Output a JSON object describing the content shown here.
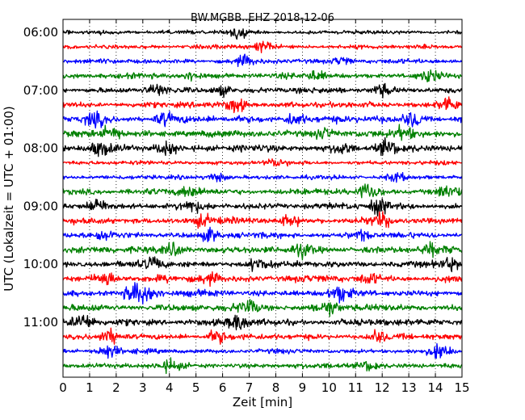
{
  "chart_data": {
    "type": "line",
    "title": "BW.MGBB..EHZ 2018-12-06",
    "xlabel": "Zeit  [min]",
    "ylabel": "UTC (Lokalzeit = UTC + 01:00)",
    "xlim": [
      0,
      15
    ],
    "x_ticks": [
      "0",
      "1",
      "2",
      "3",
      "4",
      "5",
      "6",
      "7",
      "8",
      "9",
      "10",
      "11",
      "12",
      "13",
      "14",
      "15"
    ],
    "y_ticks": [
      "06:00",
      "07:00",
      "08:00",
      "09:00",
      "10:00",
      "11:00"
    ],
    "trace_start": "06:00",
    "trace_interval_min": 15,
    "trace_count": 24,
    "grid": "vertical dotted",
    "series_colors": [
      "#000000",
      "#ff0000",
      "#0000ff",
      "#008000"
    ],
    "traces": [
      {
        "start": "06:00",
        "color": "#000000",
        "amplitude": 0.8,
        "events": [
          {
            "t": 6.6,
            "a": 1.8
          }
        ]
      },
      {
        "start": "06:15",
        "color": "#ff0000",
        "amplitude": 0.8,
        "events": [
          {
            "t": 7.5,
            "a": 1.6
          }
        ]
      },
      {
        "start": "06:30",
        "color": "#0000ff",
        "amplitude": 0.9,
        "events": [
          {
            "t": 6.8,
            "a": 1.5
          },
          {
            "t": 10.5,
            "a": 1.5
          }
        ]
      },
      {
        "start": "06:45",
        "color": "#008000",
        "amplitude": 1.0,
        "events": [
          {
            "t": 4.8,
            "a": 1.5
          },
          {
            "t": 9.5,
            "a": 1.6
          },
          {
            "t": 13.8,
            "a": 1.8
          }
        ]
      },
      {
        "start": "07:00",
        "color": "#000000",
        "amplitude": 1.1,
        "events": [
          {
            "t": 3.5,
            "a": 1.6
          },
          {
            "t": 6.0,
            "a": 1.6
          },
          {
            "t": 12.0,
            "a": 1.9
          }
        ]
      },
      {
        "start": "07:15",
        "color": "#ff0000",
        "amplitude": 1.1,
        "events": [
          {
            "t": 6.5,
            "a": 2.6
          },
          {
            "t": 14.5,
            "a": 2.8
          }
        ]
      },
      {
        "start": "07:30",
        "color": "#0000ff",
        "amplitude": 1.3,
        "events": [
          {
            "t": 1.2,
            "a": 2.1
          },
          {
            "t": 3.8,
            "a": 1.8
          },
          {
            "t": 8.7,
            "a": 2.2
          },
          {
            "t": 13.2,
            "a": 2.5
          }
        ]
      },
      {
        "start": "07:45",
        "color": "#008000",
        "amplitude": 1.3,
        "events": [
          {
            "t": 1.8,
            "a": 2.4
          },
          {
            "t": 9.8,
            "a": 2.2
          },
          {
            "t": 12.8,
            "a": 2.0
          }
        ]
      },
      {
        "start": "08:00",
        "color": "#000000",
        "amplitude": 1.3,
        "events": [
          {
            "t": 1.4,
            "a": 2.0
          },
          {
            "t": 3.9,
            "a": 2.4
          },
          {
            "t": 10.5,
            "a": 2.2
          },
          {
            "t": 12.2,
            "a": 2.2
          }
        ]
      },
      {
        "start": "08:15",
        "color": "#ff0000",
        "amplitude": 0.8,
        "events": [
          {
            "t": 8.0,
            "a": 1.2
          }
        ]
      },
      {
        "start": "08:30",
        "color": "#0000ff",
        "amplitude": 0.8,
        "events": [
          {
            "t": 5.8,
            "a": 1.5
          },
          {
            "t": 12.5,
            "a": 1.6
          }
        ]
      },
      {
        "start": "08:45",
        "color": "#008000",
        "amplitude": 1.2,
        "events": [
          {
            "t": 4.8,
            "a": 1.8
          },
          {
            "t": 11.5,
            "a": 2.6
          },
          {
            "t": 14.5,
            "a": 2.2
          }
        ]
      },
      {
        "start": "09:00",
        "color": "#000000",
        "amplitude": 1.2,
        "events": [
          {
            "t": 1.3,
            "a": 2.4
          },
          {
            "t": 4.8,
            "a": 1.6
          },
          {
            "t": 11.9,
            "a": 2.5
          }
        ]
      },
      {
        "start": "09:15",
        "color": "#ff0000",
        "amplitude": 1.2,
        "events": [
          {
            "t": 5.2,
            "a": 1.8
          },
          {
            "t": 8.5,
            "a": 1.8
          },
          {
            "t": 12.0,
            "a": 1.8
          }
        ]
      },
      {
        "start": "09:30",
        "color": "#0000ff",
        "amplitude": 1.1,
        "events": [
          {
            "t": 1.5,
            "a": 1.7
          },
          {
            "t": 5.5,
            "a": 1.8
          },
          {
            "t": 11.2,
            "a": 1.6
          }
        ]
      },
      {
        "start": "09:45",
        "color": "#008000",
        "amplitude": 1.3,
        "events": [
          {
            "t": 4.2,
            "a": 1.9
          },
          {
            "t": 9.0,
            "a": 1.8
          },
          {
            "t": 13.8,
            "a": 1.8
          }
        ]
      },
      {
        "start": "10:00",
        "color": "#000000",
        "amplitude": 1.2,
        "events": [
          {
            "t": 3.4,
            "a": 2.0
          },
          {
            "t": 7.3,
            "a": 1.8
          },
          {
            "t": 14.5,
            "a": 2.0
          }
        ]
      },
      {
        "start": "10:15",
        "color": "#ff0000",
        "amplitude": 1.3,
        "events": [
          {
            "t": 1.6,
            "a": 2.4
          },
          {
            "t": 5.5,
            "a": 1.8
          },
          {
            "t": 11.5,
            "a": 1.6
          }
        ]
      },
      {
        "start": "10:30",
        "color": "#0000ff",
        "amplitude": 1.2,
        "events": [
          {
            "t": 2.7,
            "a": 3.4
          },
          {
            "t": 3.3,
            "a": 2.2
          },
          {
            "t": 10.4,
            "a": 2.4
          }
        ]
      },
      {
        "start": "10:45",
        "color": "#008000",
        "amplitude": 1.3,
        "events": [
          {
            "t": 7.0,
            "a": 2.1
          },
          {
            "t": 10.0,
            "a": 2.2
          }
        ]
      },
      {
        "start": "11:00",
        "color": "#000000",
        "amplitude": 1.3,
        "events": [
          {
            "t": 0.8,
            "a": 2.3
          },
          {
            "t": 6.6,
            "a": 2.6
          }
        ]
      },
      {
        "start": "11:15",
        "color": "#ff0000",
        "amplitude": 1.1,
        "events": [
          {
            "t": 1.8,
            "a": 1.8
          },
          {
            "t": 5.8,
            "a": 2.2
          },
          {
            "t": 11.8,
            "a": 1.8
          }
        ]
      },
      {
        "start": "11:30",
        "color": "#0000ff",
        "amplitude": 0.9,
        "events": [
          {
            "t": 1.7,
            "a": 2.3
          },
          {
            "t": 14.2,
            "a": 2.2
          }
        ]
      },
      {
        "start": "11:45",
        "color": "#008000",
        "amplitude": 1.0,
        "events": [
          {
            "t": 4.0,
            "a": 1.6
          },
          {
            "t": 11.5,
            "a": 1.8
          }
        ]
      }
    ]
  }
}
